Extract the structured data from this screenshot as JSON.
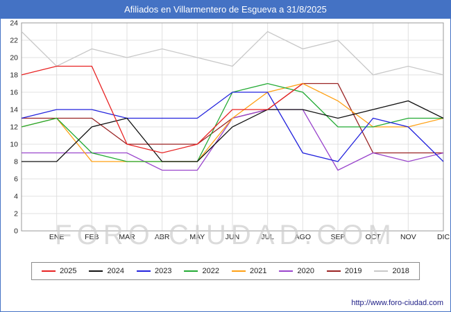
{
  "title_bar": {
    "title": "Afiliados en Villarmentero de Esgueva a 31/8/2025",
    "bg_color": "#4472c4",
    "text_color": "#ffffff"
  },
  "watermark": "FORO-CIUDAD.COM",
  "footer": {
    "url": "http://www.foro-ciudad.com"
  },
  "chart_data": {
    "type": "line",
    "title": "Afiliados en Villarmentero de Esgueva a 31/8/2025",
    "xlabel": "",
    "ylabel": "",
    "ylim": [
      0,
      24
    ],
    "ytick_step": 2,
    "grid": true,
    "legend_position": "bottom",
    "categories": [
      "ENE",
      "FEB",
      "MAR",
      "ABR",
      "MAY",
      "JUN",
      "JUL",
      "AGO",
      "SEP",
      "OCT",
      "NOV",
      "DIC"
    ],
    "first_point_on_axis": true,
    "series": [
      {
        "name": "2025",
        "color": "#e82222",
        "values": [
          18,
          19,
          19,
          10,
          9,
          10,
          14,
          14,
          17
        ]
      },
      {
        "name": "2024",
        "color": "#111111",
        "values": [
          8,
          8,
          12,
          13,
          8,
          8,
          12,
          14,
          14,
          13,
          14,
          15,
          13
        ]
      },
      {
        "name": "2023",
        "color": "#2222dd",
        "values": [
          13,
          14,
          14,
          13,
          13,
          13,
          16,
          16,
          9,
          8,
          13,
          12,
          8
        ]
      },
      {
        "name": "2022",
        "color": "#22aa33",
        "values": [
          12,
          13,
          9,
          8,
          8,
          8,
          16,
          17,
          16,
          12,
          12,
          13,
          13
        ]
      },
      {
        "name": "2021",
        "color": "#ffa013",
        "values": [
          12,
          13,
          8,
          8,
          8,
          8,
          13,
          16,
          17,
          15,
          12,
          12,
          13
        ]
      },
      {
        "name": "2020",
        "color": "#9944cc",
        "values": [
          9,
          9,
          9,
          9,
          7,
          7,
          13,
          14,
          14,
          7,
          9,
          8,
          9
        ]
      },
      {
        "name": "2019",
        "color": "#992222",
        "values": [
          13,
          13,
          13,
          10,
          10,
          10,
          13,
          14,
          17,
          17,
          9,
          9,
          9
        ]
      },
      {
        "name": "2018",
        "color": "#c8c8c8",
        "values": [
          23,
          19,
          21,
          20,
          21,
          20,
          19,
          23,
          21,
          22,
          18,
          19,
          18
        ]
      }
    ]
  }
}
